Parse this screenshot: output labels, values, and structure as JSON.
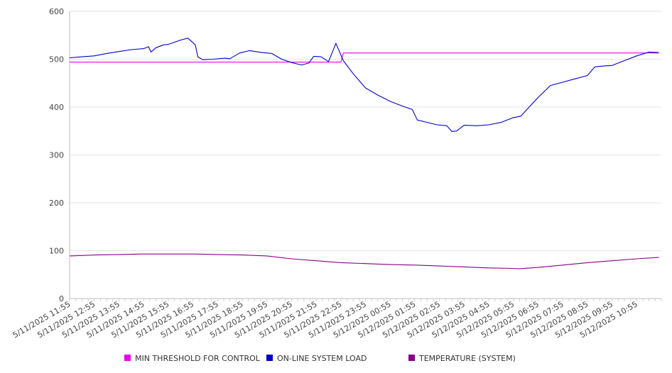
{
  "chart_data": {
    "type": "line",
    "title": "",
    "xlabel": "",
    "ylabel": "",
    "ylim": [
      0,
      600
    ],
    "yticks": [
      "0",
      "100",
      "200",
      "300",
      "400",
      "500",
      "600"
    ],
    "grid": true,
    "legend_position": "bottom",
    "x_labels": [
      "5/11/2025 11:55",
      "5/11/2025 12:55",
      "5/11/2025 13:55",
      "5/11/2025 14:55",
      "5/11/2025 15:55",
      "5/11/2025 16:55",
      "5/11/2025 17:55",
      "5/11/2025 18:55",
      "5/11/2025 19:55",
      "5/11/2025 20:55",
      "5/11/2025 21:55",
      "5/11/2025 22:55",
      "5/11/2025 23:55",
      "5/12/2025 00:55",
      "5/12/2025 01:55",
      "5/12/2025 02:55",
      "5/12/2025 03:55",
      "5/12/2025 04:55",
      "5/12/2025 05:55",
      "5/12/2025 06:55",
      "5/12/2025 07:55",
      "5/12/2025 08:55",
      "5/12/2025 09:55",
      "5/12/2025 10:55"
    ],
    "series": [
      {
        "name": "MIN THRESHOLD FOR CONTROL",
        "color": "#ee00ee",
        "points": [
          [
            0,
            494
          ],
          [
            11,
            494
          ],
          [
            11.1,
            513
          ],
          [
            23.9,
            513
          ]
        ]
      },
      {
        "name": "ON-LINE SYSTEM LOAD",
        "color": "#0000cc",
        "points": [
          [
            0,
            503
          ],
          [
            0.5,
            505
          ],
          [
            1,
            507
          ],
          [
            1.5,
            512
          ],
          [
            2,
            516
          ],
          [
            2.5,
            520
          ],
          [
            3,
            522
          ],
          [
            3.2,
            526
          ],
          [
            3.3,
            515
          ],
          [
            3.5,
            524
          ],
          [
            3.8,
            530
          ],
          [
            4,
            531
          ],
          [
            4.5,
            540
          ],
          [
            4.8,
            544
          ],
          [
            5.1,
            530
          ],
          [
            5.2,
            505
          ],
          [
            5.4,
            499
          ],
          [
            5.8,
            500
          ],
          [
            6.3,
            502
          ],
          [
            6.5,
            501
          ],
          [
            6.9,
            513
          ],
          [
            7.3,
            518
          ],
          [
            7.8,
            514
          ],
          [
            8.2,
            512
          ],
          [
            8.6,
            500
          ],
          [
            9,
            493
          ],
          [
            9.4,
            488
          ],
          [
            9.7,
            492
          ],
          [
            9.9,
            506
          ],
          [
            10.2,
            505
          ],
          [
            10.5,
            495
          ],
          [
            10.8,
            533
          ],
          [
            11.1,
            497
          ],
          [
            11.5,
            470
          ],
          [
            12,
            440
          ],
          [
            12.5,
            425
          ],
          [
            13,
            412
          ],
          [
            13.5,
            402
          ],
          [
            13.9,
            395
          ],
          [
            14.1,
            373
          ],
          [
            14.5,
            368
          ],
          [
            14.9,
            363
          ],
          [
            15.3,
            361
          ],
          [
            15.5,
            349
          ],
          [
            15.7,
            350
          ],
          [
            16,
            362
          ],
          [
            16.5,
            361
          ],
          [
            17,
            363
          ],
          [
            17.5,
            368
          ],
          [
            18,
            378
          ],
          [
            18.3,
            381
          ],
          [
            18.6,
            398
          ],
          [
            19,
            420
          ],
          [
            19.5,
            445
          ],
          [
            20,
            452
          ],
          [
            20.5,
            459
          ],
          [
            21,
            466
          ],
          [
            21.3,
            484
          ],
          [
            21.7,
            486
          ],
          [
            22,
            487
          ],
          [
            22.5,
            497
          ],
          [
            23,
            507
          ],
          [
            23.5,
            515
          ],
          [
            23.9,
            514
          ]
        ]
      },
      {
        "name": "TEMPERATURE (SYSTEM)",
        "color": "#880088",
        "points": [
          [
            0,
            89
          ],
          [
            1,
            91
          ],
          [
            2,
            92
          ],
          [
            3,
            93
          ],
          [
            4,
            93
          ],
          [
            5,
            93
          ],
          [
            6,
            92
          ],
          [
            7,
            91
          ],
          [
            8,
            89
          ],
          [
            9,
            83
          ],
          [
            10,
            79
          ],
          [
            11,
            75
          ],
          [
            12,
            73
          ],
          [
            13,
            71
          ],
          [
            14,
            70
          ],
          [
            15,
            68
          ],
          [
            16,
            66
          ],
          [
            17,
            64
          ],
          [
            18,
            63
          ],
          [
            18.2,
            62
          ],
          [
            19,
            65
          ],
          [
            20,
            70
          ],
          [
            21,
            75
          ],
          [
            22,
            79
          ],
          [
            23,
            83
          ],
          [
            23.9,
            86
          ]
        ]
      }
    ]
  }
}
